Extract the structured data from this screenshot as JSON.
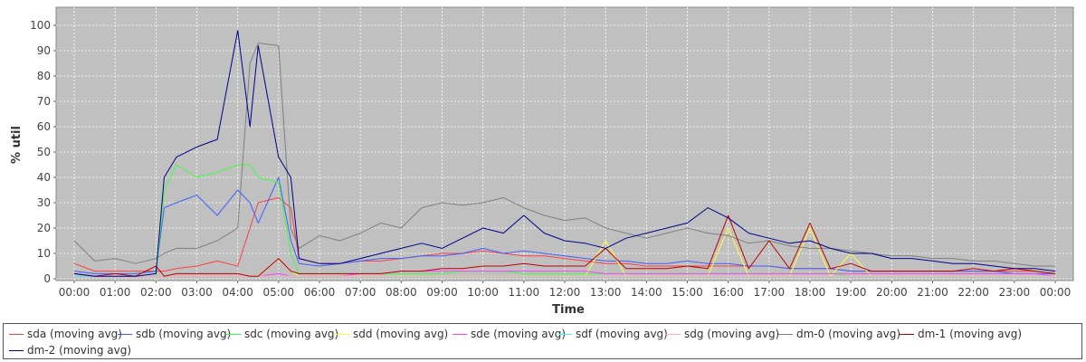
{
  "chart_data": {
    "type": "line",
    "xlabel": "Time",
    "ylabel": "% util",
    "ylim": [
      0,
      100
    ],
    "y_ticks": [
      0,
      10,
      20,
      30,
      40,
      50,
      60,
      70,
      80,
      90,
      100
    ],
    "x_tick_labels": [
      "00:00",
      "01:00",
      "02:00",
      "03:00",
      "04:00",
      "05:00",
      "06:00",
      "07:00",
      "08:00",
      "09:00",
      "10:00",
      "11:00",
      "12:00",
      "13:00",
      "14:00",
      "15:00",
      "16:00",
      "17:00",
      "18:00",
      "19:00",
      "20:00",
      "21:00",
      "22:00",
      "23:00",
      "00:00"
    ],
    "grid": true,
    "legend_position": "bottom",
    "x_hours": [
      0,
      0.5,
      1,
      1.5,
      2,
      2.2,
      2.5,
      3,
      3.5,
      4,
      4.3,
      4.5,
      5,
      5.3,
      5.5,
      6,
      6.5,
      7,
      7.5,
      8,
      8.5,
      9,
      9.5,
      10,
      10.5,
      11,
      11.5,
      12,
      12.5,
      13,
      13.5,
      14,
      14.5,
      15,
      15.5,
      16,
      16.5,
      17,
      17.5,
      18,
      18.5,
      19,
      19.5,
      20,
      20.5,
      21,
      21.5,
      22,
      22.5,
      23,
      23.5,
      24
    ],
    "series": [
      {
        "name": "sda (moving avg)",
        "color": "#ff4040",
        "values": [
          6,
          3,
          3,
          3,
          3,
          3,
          4,
          5,
          7,
          5,
          20,
          30,
          32,
          28,
          8,
          6,
          6,
          7,
          7,
          8,
          9,
          10,
          10,
          11,
          10,
          9,
          9,
          8,
          7,
          6,
          6,
          5,
          5,
          5,
          5,
          5,
          5,
          5,
          4,
          4,
          4,
          3,
          3,
          3,
          3,
          3,
          3,
          3,
          3,
          3,
          3,
          2
        ]
      },
      {
        "name": "sdb (moving avg)",
        "color": "#4060ff",
        "values": [
          3,
          2,
          2,
          2,
          3,
          28,
          30,
          33,
          25,
          35,
          30,
          22,
          40,
          15,
          6,
          5,
          6,
          7,
          8,
          8,
          9,
          9,
          10,
          12,
          10,
          11,
          10,
          9,
          8,
          7,
          7,
          6,
          6,
          7,
          6,
          6,
          5,
          5,
          4,
          4,
          4,
          3,
          3,
          3,
          3,
          3,
          3,
          3,
          3,
          2,
          2,
          2
        ]
      },
      {
        "name": "sdc (moving avg)",
        "color": "#40ff40",
        "values": [
          1,
          1,
          1,
          1,
          1,
          35,
          45,
          40,
          42,
          45,
          45,
          40,
          38,
          10,
          2,
          2,
          2,
          2,
          2,
          2,
          2,
          2,
          3,
          3,
          3,
          2,
          2,
          2,
          2,
          2,
          2,
          2,
          2,
          2,
          2,
          2,
          2,
          2,
          2,
          2,
          2,
          1,
          1,
          1,
          1,
          1,
          1,
          1,
          1,
          1,
          1,
          1
        ]
      },
      {
        "name": "sdd (moving avg)",
        "color": "#ffff40",
        "values": [
          1,
          1,
          1,
          1,
          1,
          1,
          1,
          1,
          1,
          1,
          1,
          1,
          8,
          3,
          1,
          1,
          1,
          1,
          1,
          1,
          1,
          1,
          1,
          1,
          1,
          1,
          1,
          1,
          1,
          15,
          1,
          1,
          1,
          1,
          1,
          20,
          1,
          1,
          1,
          20,
          1,
          10,
          1,
          1,
          1,
          1,
          1,
          1,
          1,
          1,
          1,
          1
        ]
      },
      {
        "name": "sde (moving avg)",
        "color": "#ff40ff",
        "values": [
          1,
          1,
          1,
          1,
          1,
          1,
          1,
          1,
          1,
          1,
          1,
          1,
          2,
          1,
          1,
          1,
          1,
          2,
          2,
          3,
          3,
          3,
          3,
          3,
          3,
          3,
          3,
          3,
          3,
          2,
          2,
          2,
          2,
          2,
          2,
          2,
          2,
          2,
          2,
          2,
          2,
          2,
          2,
          2,
          2,
          2,
          2,
          2,
          2,
          2,
          2,
          1
        ]
      },
      {
        "name": "sdf (moving avg)",
        "color": "#40ffff",
        "values": [
          1,
          1,
          1,
          1,
          1,
          1,
          1,
          1,
          1,
          1,
          1,
          1,
          1,
          1,
          1,
          1,
          1,
          1,
          1,
          1,
          1,
          1,
          1,
          1,
          1,
          1,
          1,
          1,
          1,
          1,
          1,
          1,
          1,
          1,
          1,
          1,
          1,
          1,
          1,
          1,
          1,
          1,
          1,
          1,
          1,
          1,
          1,
          1,
          1,
          1,
          1,
          1
        ]
      },
      {
        "name": "sdg (moving avg)",
        "color": "#ffb0b0",
        "values": [
          2,
          1,
          1,
          1,
          1,
          1,
          1,
          1,
          1,
          1,
          1,
          1,
          1,
          1,
          1,
          1,
          1,
          1,
          1,
          1,
          1,
          1,
          1,
          1,
          1,
          1,
          1,
          1,
          1,
          1,
          1,
          1,
          1,
          1,
          1,
          1,
          1,
          1,
          1,
          1,
          1,
          1,
          1,
          1,
          1,
          1,
          1,
          1,
          1,
          1,
          1,
          1
        ]
      },
      {
        "name": "dm-0 (moving avg)",
        "color": "#808080",
        "values": [
          15,
          7,
          8,
          6,
          8,
          10,
          12,
          12,
          15,
          20,
          85,
          93,
          92,
          20,
          12,
          17,
          15,
          18,
          22,
          20,
          28,
          30,
          29,
          30,
          32,
          28,
          25,
          23,
          24,
          20,
          18,
          16,
          18,
          20,
          18,
          17,
          14,
          15,
          13,
          12,
          12,
          11,
          10,
          9,
          9,
          8,
          8,
          7,
          7,
          6,
          5,
          5
        ]
      },
      {
        "name": "dm-1 (moving avg)",
        "color": "#c00000",
        "values": [
          2,
          1,
          2,
          1,
          5,
          1,
          2,
          2,
          2,
          2,
          1,
          1,
          8,
          3,
          2,
          2,
          2,
          2,
          2,
          3,
          3,
          4,
          4,
          5,
          5,
          6,
          5,
          5,
          5,
          12,
          4,
          4,
          4,
          5,
          4,
          25,
          4,
          15,
          4,
          22,
          4,
          6,
          3,
          3,
          3,
          3,
          3,
          4,
          3,
          4,
          3,
          2
        ]
      },
      {
        "name": "dm-2 (moving avg)",
        "color": "#00008c",
        "values": [
          2,
          1,
          1,
          1,
          2,
          40,
          48,
          52,
          55,
          98,
          60,
          92,
          48,
          40,
          8,
          6,
          6,
          8,
          10,
          12,
          14,
          12,
          16,
          20,
          18,
          25,
          18,
          15,
          14,
          12,
          16,
          18,
          20,
          22,
          28,
          24,
          18,
          16,
          14,
          15,
          12,
          10,
          10,
          8,
          8,
          7,
          6,
          6,
          5,
          4,
          4,
          3
        ]
      }
    ]
  }
}
